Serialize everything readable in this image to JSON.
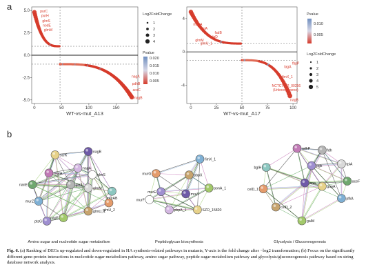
{
  "panel_a": {
    "letter": "a"
  },
  "panel_b": {
    "letter": "b"
  },
  "chart_data": [
    {
      "type": "scatter",
      "xlabel": "WT-vs-mut_A13",
      "ylabel": "",
      "xlim": [
        -5,
        190
      ],
      "ylim": [
        -5.4,
        5.4
      ],
      "xticks": [
        "0",
        "50",
        "100",
        "150"
      ],
      "yticks": [
        "5.0",
        "2.5",
        "0.0",
        "-2.5",
        "-5.0"
      ],
      "grid": true,
      "legend_size": {
        "title": "Log2FoldChange",
        "entries": [
          "1",
          "2",
          "3",
          "4"
        ]
      },
      "legend_color": {
        "title": "Pvalue",
        "entries": [
          "0.020",
          "0.015",
          "0.010",
          "0.005"
        ]
      },
      "labels": [
        {
          "text": "purC",
          "x": 8,
          "y": 4.9
        },
        {
          "text": "purH",
          "x": 10,
          "y": 4.4
        },
        {
          "text": "glmS",
          "x": 12,
          "y": 3.8
        },
        {
          "text": "nodE",
          "x": 13,
          "y": 3.3
        },
        {
          "text": "glmM",
          "x": 15,
          "y": 2.8
        },
        {
          "text": "nagA",
          "x": 176,
          "y": -2.4
        },
        {
          "text": "pdhB",
          "x": 177,
          "y": -3.2
        },
        {
          "text": "acsC",
          "x": 178,
          "y": -3.9
        },
        {
          "text": "nagB",
          "x": 181,
          "y": -4.8
        }
      ]
    },
    {
      "type": "scatter",
      "xlabel": "WT-vs-mut_A17",
      "ylabel": "",
      "xlim": [
        -4,
        104
      ],
      "ylim": [
        -6.2,
        5.4
      ],
      "xticks": [
        "0",
        "25",
        "50",
        "75",
        "100"
      ],
      "yticks": [
        "4",
        "0",
        "-4"
      ],
      "grid": true,
      "legend_color": {
        "title": "Pvalue",
        "entries": [
          "0.010",
          "0.005"
        ]
      },
      "legend_size": {
        "title": "Log2FoldChange",
        "entries": [
          "1",
          "2",
          "3",
          "4",
          "5"
        ]
      },
      "labels": [
        {
          "text": "mapA",
          "x": 1,
          "y": 3.3
        },
        {
          "text": "rmlA",
          "x": 8,
          "y": 2.8
        },
        {
          "text": "glgD",
          "x": 18,
          "y": 1.8
        },
        {
          "text": "fadB",
          "x": 22,
          "y": 2.3
        },
        {
          "text": "glmM",
          "x": 3,
          "y": 1.4
        },
        {
          "text": "glmU_1",
          "x": 8,
          "y": 1.0
        },
        {
          "text": "fbpP",
          "x": 98,
          "y": -1.4
        },
        {
          "text": "tagA",
          "x": 90,
          "y": -1.8
        },
        {
          "text": "fimX_1",
          "x": 88,
          "y": -3.0
        },
        {
          "text": "NCTC7022_00256",
          "x": 78,
          "y": -4.1
        },
        {
          "text": "(Unknown gene)",
          "x": 79,
          "y": -4.6
        },
        {
          "text": "nagB",
          "x": 96,
          "y": -5.8
        }
      ]
    }
  ],
  "networks": [
    {
      "caption": "Amino sugar and nucleotide sugar metabolism",
      "nodes": [
        {
          "label": "nagB"
        },
        {
          "label": "scrK"
        },
        {
          "label": "nagA"
        },
        {
          "label": "glmS"
        },
        {
          "label": "murA"
        },
        {
          "label": "glmU"
        },
        {
          "label": "glmM"
        },
        {
          "label": "murAB"
        },
        {
          "label": "nanE"
        },
        {
          "label": "murZ"
        },
        {
          "label": "glmU_2"
        },
        {
          "label": "glmU_1"
        },
        {
          "label": "nagE"
        },
        {
          "label": "ptsG"
        }
      ]
    },
    {
      "caption": "Peptidoglycan biosynthesis",
      "nodes": [
        {
          "label": "fimX_1"
        },
        {
          "label": "murG"
        },
        {
          "label": "pbpX"
        },
        {
          "label": "ponA_1"
        },
        {
          "label": "murE"
        },
        {
          "label": "mraY"
        },
        {
          "label": "SZO_15820"
        },
        {
          "label": "pbpA_1"
        },
        {
          "label": "murF"
        }
      ]
    },
    {
      "caption": "Glycolysis / Gluconeogenesis",
      "nodes": [
        {
          "label": "adhP"
        },
        {
          "label": "fdh"
        },
        {
          "label": "tpiA"
        },
        {
          "label": "bglH"
        },
        {
          "label": "aceF"
        },
        {
          "label": "pfkA"
        },
        {
          "label": "celD_1"
        },
        {
          "label": "celD_2"
        },
        {
          "label": "galM"
        },
        {
          "label": "pgk"
        },
        {
          "label": "eno"
        },
        {
          "label": "gapA"
        }
      ]
    }
  ],
  "caption": {
    "fig_label": "Fig. 6.",
    "text": " (a) Ranking of DEGs up-regulated and down-regulated in HA synthesis-related pathways in mutants, Y-axis is the fold change after −log2 transformation; (b) Focus on the significantly different gene-protein interactions in nucleotide sugar metabolism pathway, amino sugar pathway, peptide sugar metabolism pathway and glycolysis/gluconeogenesis pathway based on string database network analysis."
  }
}
